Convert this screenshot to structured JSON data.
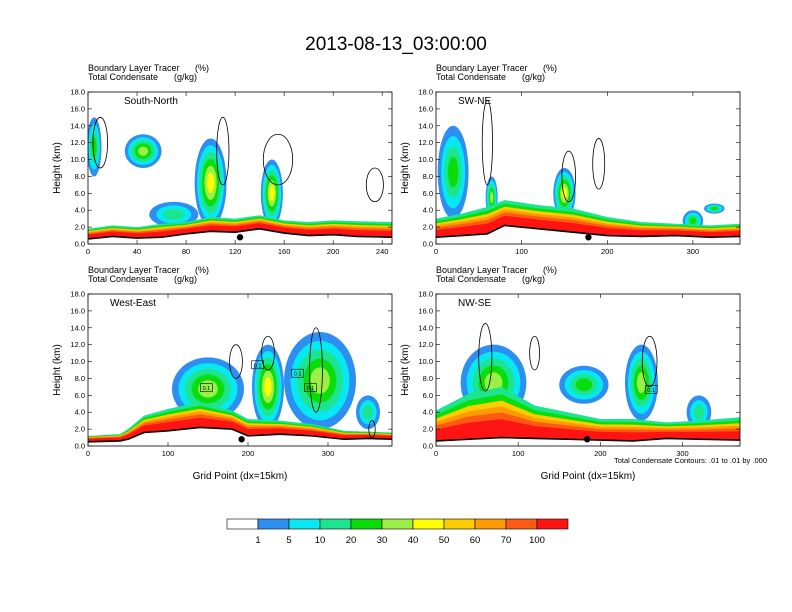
{
  "title": "2013-08-13_03:00:00",
  "footnote": "Total Condensate Contours: .01 to .01 by .000",
  "colorbar": {
    "colors": [
      "#ffffff",
      "#2e8ff3",
      "#06e8f2",
      "#1de48f",
      "#0ade0a",
      "#9bf045",
      "#ffff00",
      "#ffcc00",
      "#ff9a00",
      "#ff5a14",
      "#ff1414"
    ],
    "labels": [
      "1",
      "5",
      "10",
      "20",
      "30",
      "40",
      "50",
      "60",
      "70",
      "100"
    ]
  },
  "chart_data": [
    {
      "type": "heatmap",
      "panel": "top-left",
      "subtitle_left": "Boundary Layer Tracer",
      "subtitle_left_2": "Total Condensate",
      "subtitle_right": "(%)",
      "subtitle_right_2": "(g/kg)",
      "label": "South-North",
      "xlabel": "",
      "ylabel": "Height (km)",
      "xlim": [
        0,
        248
      ],
      "ylim": [
        0,
        18
      ],
      "xticks": [
        "0",
        "40",
        "80",
        "120",
        "160",
        "200",
        "240"
      ],
      "xtick_values": [
        0,
        40,
        80,
        120,
        160,
        200,
        240
      ],
      "yticks": [
        "0.0",
        "2.0",
        "4.0",
        "6.0",
        "8.0",
        "10.0",
        "12.0",
        "14.0",
        "16.0",
        "18.0"
      ],
      "terrain": [
        [
          0,
          0.6
        ],
        [
          20,
          0.9
        ],
        [
          40,
          0.7
        ],
        [
          60,
          0.8
        ],
        [
          80,
          1.2
        ],
        [
          100,
          1.5
        ],
        [
          120,
          1.4
        ],
        [
          140,
          1.8
        ],
        [
          160,
          1.3
        ],
        [
          180,
          1.0
        ],
        [
          200,
          1.1
        ],
        [
          220,
          0.9
        ],
        [
          248,
          0.8
        ]
      ],
      "mixed_layer": [
        [
          0,
          1.6
        ],
        [
          20,
          2.0
        ],
        [
          40,
          1.8
        ],
        [
          60,
          2.2
        ],
        [
          80,
          2.4
        ],
        [
          100,
          3.0
        ],
        [
          120,
          2.8
        ],
        [
          140,
          3.2
        ],
        [
          160,
          2.6
        ],
        [
          180,
          2.4
        ],
        [
          200,
          2.6
        ],
        [
          220,
          2.5
        ],
        [
          248,
          2.4
        ]
      ],
      "plumes": [
        {
          "x": 5,
          "w": 12,
          "top": 15,
          "bottom": 8,
          "peak": 20
        },
        {
          "x": 45,
          "w": 30,
          "top": 13,
          "bottom": 9,
          "peak": 30
        },
        {
          "x": 100,
          "w": 26,
          "top": 12.5,
          "bottom": 2,
          "peak": 40
        },
        {
          "x": 150,
          "w": 18,
          "top": 10,
          "bottom": 2,
          "peak": 40
        },
        {
          "x": 70,
          "w": 40,
          "top": 5,
          "bottom": 2,
          "peak": 10
        }
      ],
      "contours": [
        {
          "x": 10,
          "y": 12,
          "rx": 6,
          "ry": 3
        },
        {
          "x": 110,
          "y": 11,
          "rx": 5,
          "ry": 4
        },
        {
          "x": 155,
          "y": 10,
          "rx": 12,
          "ry": 3
        },
        {
          "x": 234,
          "y": 7,
          "rx": 7,
          "ry": 2
        }
      ],
      "marker": [
        124,
        0.8
      ]
    },
    {
      "type": "heatmap",
      "panel": "top-right",
      "subtitle_left": "Boundary Layer Tracer",
      "subtitle_left_2": "Total Condensate",
      "subtitle_right": "(%)",
      "subtitle_right_2": "(g/kg)",
      "label": "SW-NE",
      "xlabel": "",
      "ylabel": "Height (km)",
      "xlim": [
        0,
        355
      ],
      "ylim": [
        0,
        18
      ],
      "xticks": [
        "0",
        "100",
        "200",
        "300"
      ],
      "xtick_values": [
        0,
        100,
        200,
        300
      ],
      "yticks": [
        "0.0",
        "2.0",
        "4.0",
        "6.0",
        "8.0",
        "10.0",
        "12.0",
        "14.0",
        "16.0",
        "18.0"
      ],
      "terrain": [
        [
          0,
          0.8
        ],
        [
          30,
          1.0
        ],
        [
          60,
          1.2
        ],
        [
          80,
          2.2
        ],
        [
          120,
          1.8
        ],
        [
          160,
          1.4
        ],
        [
          200,
          1.0
        ],
        [
          240,
          0.9
        ],
        [
          280,
          1.0
        ],
        [
          320,
          0.8
        ],
        [
          355,
          0.9
        ]
      ],
      "mixed_layer": [
        [
          0,
          2.8
        ],
        [
          30,
          3.4
        ],
        [
          60,
          4.2
        ],
        [
          80,
          5.0
        ],
        [
          120,
          4.4
        ],
        [
          160,
          4.0
        ],
        [
          200,
          3.0
        ],
        [
          240,
          2.4
        ],
        [
          280,
          2.2
        ],
        [
          320,
          2.0
        ],
        [
          355,
          2.2
        ]
      ],
      "plumes": [
        {
          "x": 20,
          "w": 36,
          "top": 14,
          "bottom": 3,
          "peak": 20
        },
        {
          "x": 65,
          "w": 14,
          "top": 8,
          "bottom": 3,
          "peak": 30
        },
        {
          "x": 150,
          "w": 26,
          "top": 9,
          "bottom": 3,
          "peak": 40
        },
        {
          "x": 300,
          "w": 24,
          "top": 4,
          "bottom": 1.5,
          "peak": 20
        },
        {
          "x": 325,
          "w": 24,
          "top": 4.8,
          "bottom": 3.6,
          "peak": 20
        }
      ],
      "contours": [
        {
          "x": 60,
          "y": 12,
          "rx": 6,
          "ry": 5
        },
        {
          "x": 155,
          "y": 8,
          "rx": 8,
          "ry": 3
        },
        {
          "x": 190,
          "y": 9.5,
          "rx": 7,
          "ry": 3
        }
      ],
      "marker": [
        178,
        0.8
      ]
    },
    {
      "type": "heatmap",
      "panel": "bottom-left",
      "subtitle_left": "Boundary Layer Tracer",
      "subtitle_left_2": "Total Condensate",
      "subtitle_right": "(%)",
      "subtitle_right_2": "(g/kg)",
      "label": "West-East",
      "xlabel": "Grid Point (dx=15km)",
      "ylabel": "Height (km)",
      "xlim": [
        0,
        380
      ],
      "ylim": [
        0,
        18
      ],
      "xticks": [
        "0",
        "100",
        "200",
        "300"
      ],
      "xtick_values": [
        0,
        100,
        200,
        300
      ],
      "yticks": [
        "0.0",
        "2.0",
        "4.0",
        "6.0",
        "8.0",
        "10.0",
        "12.0",
        "14.0",
        "16.0",
        "18.0"
      ],
      "terrain": [
        [
          0,
          0.5
        ],
        [
          40,
          0.6
        ],
        [
          50,
          0.8
        ],
        [
          70,
          1.6
        ],
        [
          100,
          1.8
        ],
        [
          140,
          2.2
        ],
        [
          180,
          2.0
        ],
        [
          200,
          1.2
        ],
        [
          240,
          1.4
        ],
        [
          280,
          1.2
        ],
        [
          320,
          0.8
        ],
        [
          350,
          0.9
        ],
        [
          380,
          0.8
        ]
      ],
      "mixed_layer": [
        [
          0,
          1.0
        ],
        [
          40,
          1.2
        ],
        [
          50,
          1.8
        ],
        [
          70,
          3.4
        ],
        [
          100,
          4.2
        ],
        [
          140,
          5.0
        ],
        [
          180,
          4.0
        ],
        [
          200,
          3.0
        ],
        [
          240,
          2.8
        ],
        [
          280,
          2.4
        ],
        [
          320,
          1.6
        ],
        [
          350,
          1.5
        ],
        [
          380,
          1.4
        ]
      ],
      "plumes": [
        {
          "x": 150,
          "w": 90,
          "top": 10.5,
          "bottom": 3,
          "peak": 30
        },
        {
          "x": 225,
          "w": 40,
          "top": 12,
          "bottom": 2,
          "peak": 40
        },
        {
          "x": 290,
          "w": 90,
          "top": 13.5,
          "bottom": 2,
          "peak": 30
        },
        {
          "x": 350,
          "w": 30,
          "top": 6,
          "bottom": 2,
          "peak": 10
        }
      ],
      "contours": [
        {
          "x": 185,
          "y": 10,
          "rx": 8,
          "ry": 2
        },
        {
          "x": 225,
          "y": 11,
          "rx": 8,
          "ry": 2
        },
        {
          "x": 285,
          "y": 9,
          "rx": 8,
          "ry": 5
        },
        {
          "x": 355,
          "y": 2,
          "rx": 4,
          "ry": 1
        }
      ],
      "box_labels": [
        {
          "x": 148,
          "y": 6.8,
          "text": "0.1"
        },
        {
          "x": 212,
          "y": 9.5,
          "text": "0.1"
        },
        {
          "x": 262,
          "y": 8.5,
          "text": "0.1"
        },
        {
          "x": 278,
          "y": 6.8,
          "text": "0.1"
        }
      ],
      "marker": [
        192,
        0.8
      ]
    },
    {
      "type": "heatmap",
      "panel": "bottom-right",
      "subtitle_left": "Boundary Layer Tracer",
      "subtitle_left_2": "Total Condensate",
      "subtitle_right": "(%)",
      "subtitle_right_2": "(g/kg)",
      "label": "NW-SE",
      "xlabel": "Grid Point (dx=15km)",
      "ylabel": "Height (km)",
      "xlim": [
        0,
        370
      ],
      "ylim": [
        0,
        18
      ],
      "xticks": [
        "0",
        "100",
        "200",
        "300"
      ],
      "xtick_values": [
        0,
        100,
        200,
        300
      ],
      "yticks": [
        "0.0",
        "2.0",
        "4.0",
        "6.0",
        "8.0",
        "10.0",
        "12.0",
        "14.0",
        "16.0",
        "18.0"
      ],
      "terrain": [
        [
          0,
          0.6
        ],
        [
          40,
          0.8
        ],
        [
          80,
          1.0
        ],
        [
          120,
          0.9
        ],
        [
          160,
          0.8
        ],
        [
          200,
          0.7
        ],
        [
          240,
          0.6
        ],
        [
          280,
          0.9
        ],
        [
          320,
          0.8
        ],
        [
          370,
          0.7
        ]
      ],
      "mixed_layer": [
        [
          0,
          4.0
        ],
        [
          40,
          6.0
        ],
        [
          80,
          6.8
        ],
        [
          120,
          4.6
        ],
        [
          160,
          3.8
        ],
        [
          200,
          3.0
        ],
        [
          240,
          3.0
        ],
        [
          280,
          2.6
        ],
        [
          320,
          2.8
        ],
        [
          370,
          3.2
        ]
      ],
      "plumes": [
        {
          "x": 70,
          "w": 80,
          "top": 12,
          "bottom": 3,
          "peak": 30
        },
        {
          "x": 180,
          "w": 60,
          "top": 9.5,
          "bottom": 5,
          "peak": 20
        },
        {
          "x": 250,
          "w": 40,
          "top": 12,
          "bottom": 3,
          "peak": 30
        },
        {
          "x": 320,
          "w": 30,
          "top": 6,
          "bottom": 2,
          "peak": 10
        }
      ],
      "contours": [
        {
          "x": 60,
          "y": 10.5,
          "rx": 8,
          "ry": 4
        },
        {
          "x": 120,
          "y": 11,
          "rx": 6,
          "ry": 2
        },
        {
          "x": 260,
          "y": 10,
          "rx": 9,
          "ry": 3
        }
      ],
      "box_labels": [
        {
          "x": 262,
          "y": 6.6,
          "text": "0.1"
        }
      ],
      "marker": [
        184,
        0.8
      ]
    }
  ]
}
